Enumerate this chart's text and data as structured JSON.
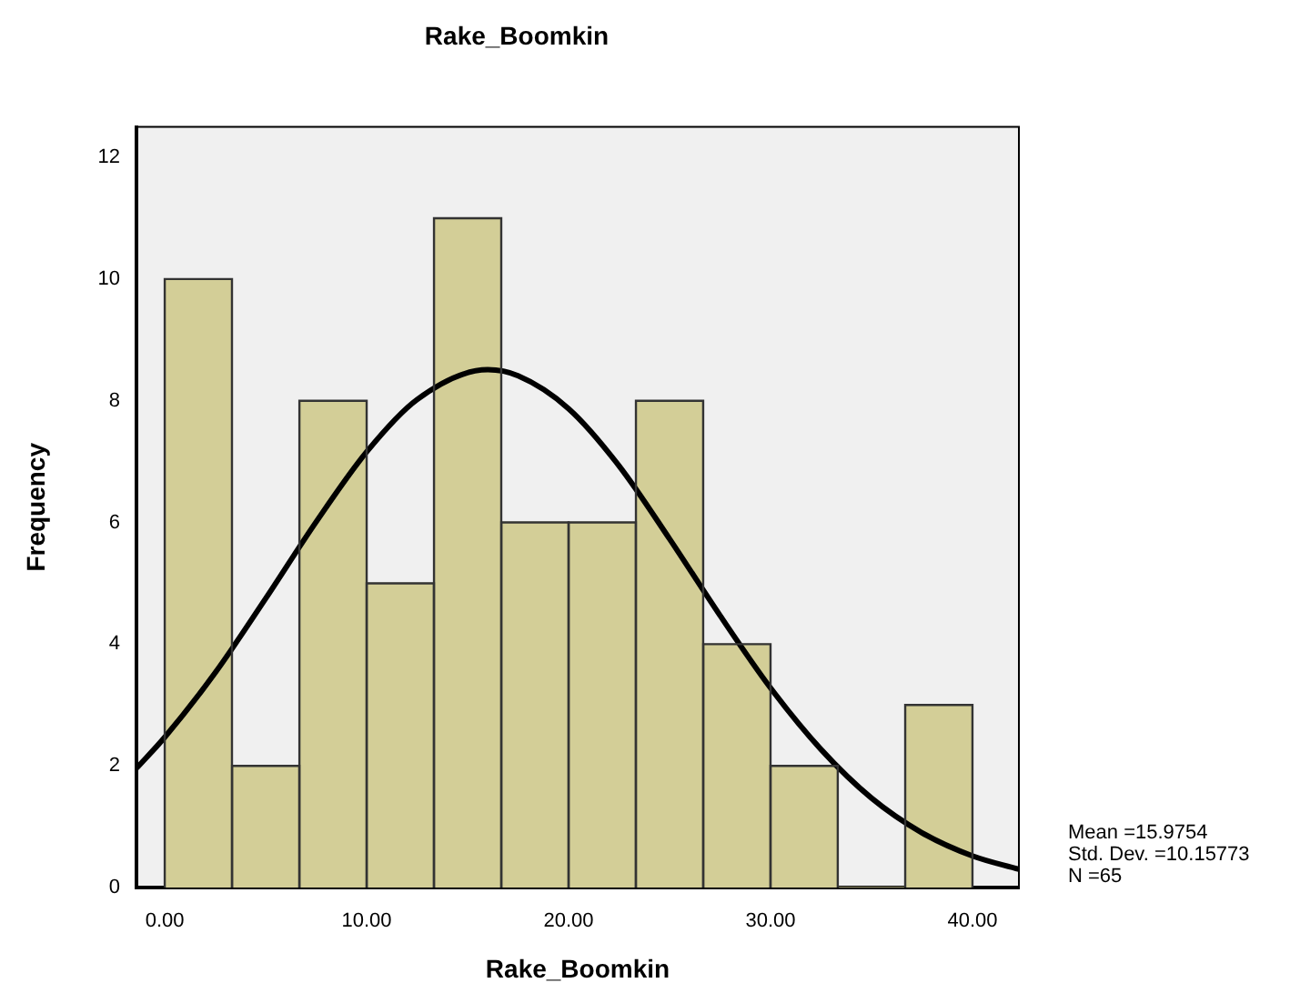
{
  "chart_data": {
    "type": "histogram",
    "title": "Rake_Boomkin",
    "xlabel": "Rake_Boomkin",
    "ylabel": "Frequency",
    "bins": [
      0,
      3.33,
      6.67,
      10,
      13.33,
      16.67,
      20,
      23.33,
      26.67,
      30,
      33.33,
      36.67,
      40
    ],
    "color": "#d3ce97",
    "values": [
      10,
      2,
      8,
      5,
      11,
      6,
      6,
      8,
      4,
      2,
      0,
      3
    ],
    "series": [
      {
        "type": "line",
        "color": "#000000",
        "x": [
          -1.4,
          0,
          2.5,
          5,
          7.5,
          10,
          12.5,
          16,
          17.5,
          20,
          22.5,
          25,
          27.5,
          30,
          32.5,
          35,
          37.5,
          40,
          42.3
        ],
        "values": [
          1.96,
          2.47,
          3.53,
          4.75,
          6.01,
          7.16,
          8.02,
          8.51,
          8.41,
          7.87,
          6.93,
          5.73,
          4.47,
          3.28,
          2.27,
          1.47,
          0.9,
          0.52,
          0.3
        ]
      }
    ],
    "xlim": [
      -1.4,
      42.3
    ],
    "xticks": [
      {
        "value": 0,
        "label": "0.00"
      },
      {
        "value": 10,
        "label": "10.00"
      },
      {
        "value": 20,
        "label": "20.00"
      },
      {
        "value": 30,
        "label": "30.00"
      },
      {
        "value": 40,
        "label": "40.00"
      }
    ],
    "ylim": [
      0,
      12.5
    ],
    "yticks": [
      0,
      2,
      4,
      6,
      8,
      10,
      12
    ],
    "annotations": [
      "Mean =15.9754",
      "Std. Dev. =10.15773",
      "N =65"
    ]
  }
}
